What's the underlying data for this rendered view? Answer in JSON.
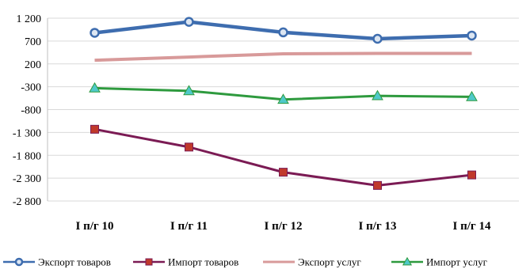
{
  "chart_data": {
    "type": "line",
    "categories": [
      "I п/г 10",
      "I п/г 11",
      "I п/г 12",
      "I п/г 13",
      "I п/г 14"
    ],
    "yticks": [
      "1 200",
      "700",
      "200",
      "-300",
      "-800",
      "-1 300",
      "-1 800",
      "-2 300",
      "-2 800"
    ],
    "ylim": [
      -2800,
      1200
    ],
    "grid": "horizontal",
    "legend_position": "bottom",
    "series": [
      {
        "name": "Экспорт товаров",
        "marker": "circle",
        "color": "#3E6DAF",
        "marker_fill": "#DCE6F2",
        "values": [
          880,
          1120,
          890,
          750,
          820
        ]
      },
      {
        "name": "Импорт товаров",
        "marker": "square",
        "color": "#7B1B54",
        "marker_fill": "#C0392B",
        "values": [
          -1230,
          -1620,
          -2170,
          -2460,
          -2230
        ]
      },
      {
        "name": "Экспорт услуг",
        "marker": "none",
        "color": "#D89A9A",
        "values": [
          280,
          350,
          420,
          430,
          430
        ]
      },
      {
        "name": "Импорт услуг",
        "marker": "triangle",
        "color": "#2E9A3E",
        "marker_fill": "#4FC9C9",
        "values": [
          -330,
          -390,
          -580,
          -500,
          -520
        ]
      }
    ]
  }
}
